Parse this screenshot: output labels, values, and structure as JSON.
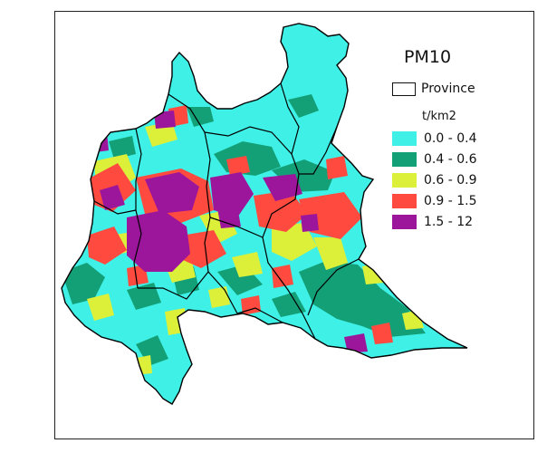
{
  "legend": {
    "title": "PM10",
    "boundary_label": "Province",
    "unit": "t/km2",
    "classes": [
      {
        "label": "0.0 - 0.4",
        "color": "#3ff0e6"
      },
      {
        "label": "0.4 - 0.6",
        "color": "#14a077"
      },
      {
        "label": "0.6 - 0.9",
        "color": "#dcf03a"
      },
      {
        "label": "0.9 - 1.5",
        "color": "#ff4a3f"
      },
      {
        "label": "1.5 - 12",
        "color": "#9c169c"
      }
    ]
  },
  "colors": {
    "background": "#ffffff",
    "boundary": "#000000",
    "frame": "#222222"
  }
}
